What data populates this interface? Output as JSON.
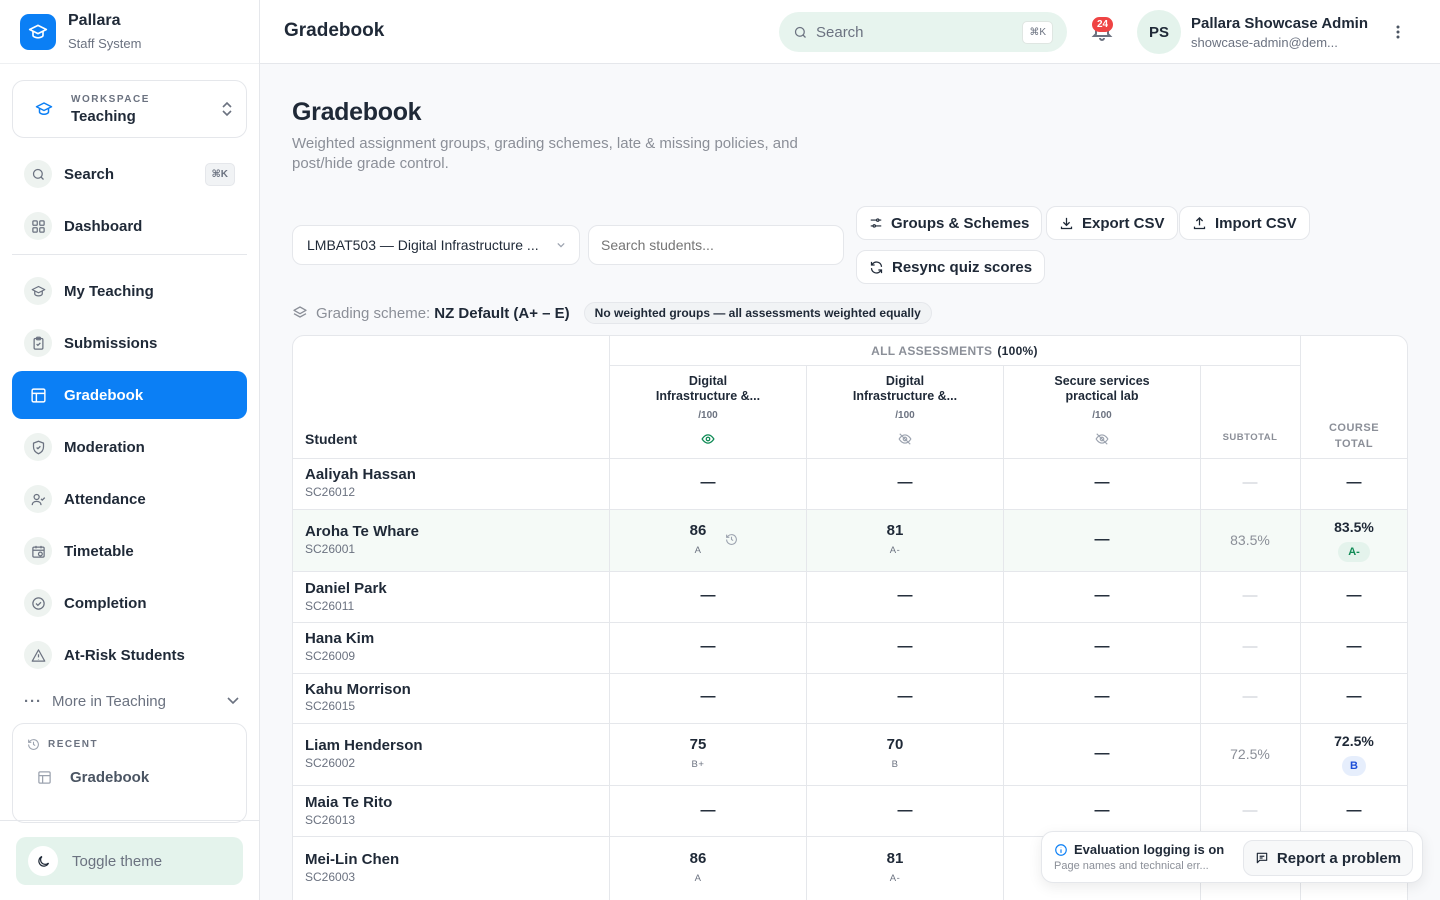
{
  "brand": {
    "name": "Pallara",
    "subtitle": "Staff System"
  },
  "workspace": {
    "label": "WORKSPACE",
    "value": "Teaching"
  },
  "sidebar": {
    "search_label": "Search",
    "search_shortcut": "⌘K",
    "items": [
      {
        "label": "Dashboard",
        "icon": "dashboard-icon"
      },
      {
        "label": "My Teaching",
        "icon": "teaching-icon"
      },
      {
        "label": "Submissions",
        "icon": "clipboard-icon"
      },
      {
        "label": "Gradebook",
        "icon": "gradebook-icon",
        "active": true
      },
      {
        "label": "Moderation",
        "icon": "shield-check-icon"
      },
      {
        "label": "Attendance",
        "icon": "user-check-icon"
      },
      {
        "label": "Timetable",
        "icon": "calendar-clock-icon"
      },
      {
        "label": "Completion",
        "icon": "check-circle-icon"
      },
      {
        "label": "At-Risk Students",
        "icon": "warning-icon"
      }
    ],
    "more_label": "More in Teaching",
    "recent_label": "RECENT",
    "recent_items": [
      "Gradebook"
    ],
    "toggle_theme": "Toggle theme"
  },
  "header": {
    "title": "Gradebook",
    "search_placeholder": "Search",
    "search_shortcut": "⌘K",
    "notification_count": "24",
    "avatar_initials": "PS",
    "user_name": "Pallara Showcase Admin",
    "user_email": "showcase-admin@dem..."
  },
  "page": {
    "title": "Gradebook",
    "description": "Weighted assignment groups, grading schemes, late & missing policies, and post/hide grade control."
  },
  "toolbar": {
    "course": "LMBAT503 — Digital Infrastructure ...",
    "student_search_placeholder": "Search students...",
    "groups_schemes": "Groups & Schemes",
    "export_csv": "Export CSV",
    "import_csv": "Import CSV",
    "resync": "Resync quiz scores"
  },
  "scheme": {
    "label": "Grading scheme:",
    "value": "NZ Default (A+ – E)",
    "note": "No weighted groups — all assessments weighted equally"
  },
  "table": {
    "student_header": "Student",
    "group_header": "ALL ASSESSMENTS",
    "group_weight": "(100%)",
    "subtotal_header": "SUBTOTAL",
    "total_header_1": "COURSE",
    "total_header_2": "TOTAL",
    "columns": [
      {
        "line1": "Digital",
        "line2": "Infrastructure &...",
        "max": "/100",
        "visibility": "visible"
      },
      {
        "line1": "Digital",
        "line2": "Infrastructure &...",
        "max": "/100",
        "visibility": "hidden"
      },
      {
        "line1": "Secure services",
        "line2": "practical lab",
        "max": "/100",
        "visibility": "hidden"
      }
    ],
    "dash": "—",
    "rows": [
      {
        "name": "Aaliyah Hassan",
        "id": "SC26012"
      },
      {
        "name": "Aroha Te Whare",
        "id": "SC26001",
        "s1": "86",
        "g1": "A",
        "s2": "81",
        "g2": "A-",
        "subtotal": "83.5%",
        "total": "83.5%",
        "total_grade": "A-"
      },
      {
        "name": "Daniel Park",
        "id": "SC26011"
      },
      {
        "name": "Hana Kim",
        "id": "SC26009"
      },
      {
        "name": "Kahu Morrison",
        "id": "SC26015"
      },
      {
        "name": "Liam Henderson",
        "id": "SC26002",
        "s1": "75",
        "g1": "B+",
        "s2": "70",
        "g2": "B",
        "subtotal": "72.5%",
        "total": "72.5%",
        "total_grade": "B"
      },
      {
        "name": "Maia Te Rito",
        "id": "SC26013"
      },
      {
        "name": "Mei-Lin Chen",
        "id": "SC26003",
        "s1": "86",
        "g1": "A",
        "s2": "81",
        "g2": "A-"
      }
    ]
  },
  "toast": {
    "title": "Evaluation logging is on",
    "subtitle": "Page names and technical err...",
    "report": "Report a problem"
  },
  "colors": {
    "accent": "#0b7ff5",
    "mint": "#e4f3ec",
    "badge_green": "#0f8a55",
    "badge_blue": "#1d4ed8",
    "notify_red": "#ef4444"
  }
}
